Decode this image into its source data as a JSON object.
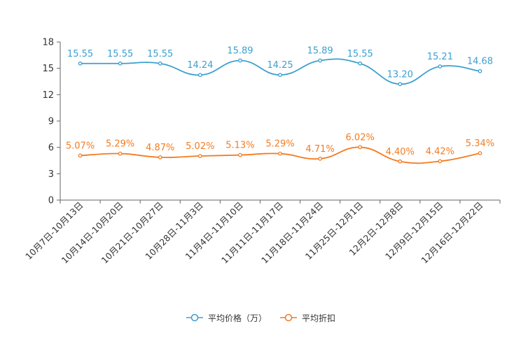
{
  "chart_data": {
    "type": "line",
    "categories": [
      "10月7日-10月13日",
      "10月14日-10月20日",
      "10月21日-10月27日",
      "10月28日-11月3日",
      "11月4日-11月10日",
      "11月11日-11月17日",
      "11月18日-11月24日",
      "11月25日-12月1日",
      "12月2日-12月8日",
      "12月9日-12月15日",
      "12月16日-12月22日"
    ],
    "ylim": [
      0,
      18
    ],
    "yticks": [
      "0",
      "3",
      "6",
      "9",
      "12",
      "15",
      "18"
    ],
    "ytick_values": [
      0,
      3,
      6,
      9,
      12,
      15,
      18
    ],
    "series": [
      {
        "name": "平均价格（万）",
        "color": "#3ba0cf",
        "values": [
          15.55,
          15.55,
          15.55,
          14.24,
          15.89,
          14.25,
          15.89,
          15.55,
          13.2,
          15.21,
          14.68
        ],
        "labels": [
          "15.55",
          "15.55",
          "15.55",
          "14.24",
          "15.89",
          "14.25",
          "15.89",
          "15.55",
          "13.20",
          "15.21",
          "14.68"
        ]
      },
      {
        "name": "平均折扣",
        "color": "#f47b20",
        "values": [
          5.07,
          5.29,
          4.87,
          5.02,
          5.13,
          5.29,
          4.71,
          6.02,
          4.4,
          4.42,
          5.34
        ],
        "labels": [
          "5.07%",
          "5.29%",
          "4.87%",
          "5.02%",
          "5.13%",
          "5.29%",
          "4.71%",
          "6.02%",
          "4.40%",
          "4.42%",
          "5.34%"
        ]
      }
    ]
  }
}
